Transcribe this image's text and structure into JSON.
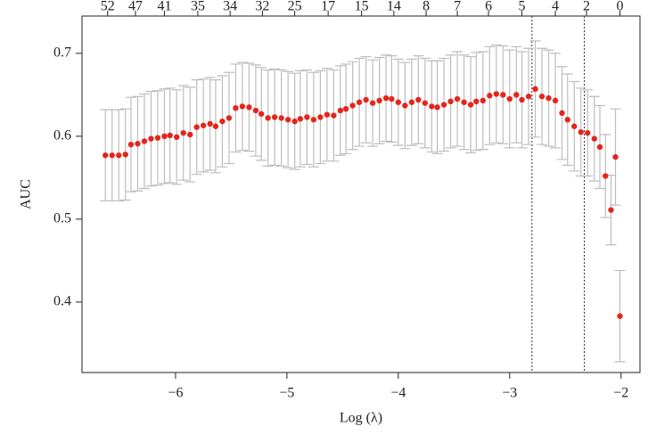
{
  "chart_data": {
    "type": "errorbar",
    "xlabel": "Log (λ)",
    "ylabel": "AUC",
    "xlim": [
      -6.84,
      -1.83
    ],
    "ylim": [
      0.315,
      0.745
    ],
    "xticks": [
      {
        "value": -6,
        "label": "−6"
      },
      {
        "value": -5,
        "label": "−5"
      },
      {
        "value": -4,
        "label": "−4"
      },
      {
        "value": -3,
        "label": "−3"
      },
      {
        "value": -2,
        "label": "−2"
      }
    ],
    "yticks": [
      0.4,
      0.5,
      0.6,
      0.7
    ],
    "top_ticks": [
      {
        "value": -6.61,
        "label": "52"
      },
      {
        "value": -6.36,
        "label": "47"
      },
      {
        "value": -6.1,
        "label": "41"
      },
      {
        "value": -5.8,
        "label": "35"
      },
      {
        "value": -5.51,
        "label": "34"
      },
      {
        "value": -5.22,
        "label": "32"
      },
      {
        "value": -4.93,
        "label": "25"
      },
      {
        "value": -4.63,
        "label": "17"
      },
      {
        "value": -4.33,
        "label": "15"
      },
      {
        "value": -4.04,
        "label": "14"
      },
      {
        "value": -3.75,
        "label": "8"
      },
      {
        "value": -3.47,
        "label": "7"
      },
      {
        "value": -3.19,
        "label": "6"
      },
      {
        "value": -2.89,
        "label": "5"
      },
      {
        "value": -2.59,
        "label": "4"
      },
      {
        "value": -2.31,
        "label": "2"
      },
      {
        "value": -2.01,
        "label": "0"
      }
    ],
    "vlines": [
      -2.8,
      -2.33
    ],
    "color": "#e3261c",
    "error_color": "#bdbdbd",
    "x": [
      -6.63,
      -6.57,
      -6.51,
      -6.45,
      -6.4,
      -6.34,
      -6.28,
      -6.22,
      -6.16,
      -6.1,
      -6.05,
      -5.99,
      -5.93,
      -5.87,
      -5.81,
      -5.75,
      -5.69,
      -5.64,
      -5.58,
      -5.52,
      -5.46,
      -5.4,
      -5.34,
      -5.28,
      -5.23,
      -5.17,
      -5.11,
      -5.05,
      -4.99,
      -4.93,
      -4.88,
      -4.82,
      -4.76,
      -4.7,
      -4.64,
      -4.58,
      -4.52,
      -4.47,
      -4.41,
      -4.35,
      -4.29,
      -4.23,
      -4.17,
      -4.11,
      -4.06,
      -4.0,
      -3.94,
      -3.88,
      -3.82,
      -3.76,
      -3.7,
      -3.65,
      -3.59,
      -3.53,
      -3.47,
      -3.41,
      -3.35,
      -3.3,
      -3.24,
      -3.18,
      -3.12,
      -3.06,
      -3.0,
      -2.94,
      -2.89,
      -2.83,
      -2.77,
      -2.71,
      -2.65,
      -2.59,
      -2.53,
      -2.48,
      -2.42,
      -2.36,
      -2.3,
      -2.24,
      -2.19,
      -2.14,
      -2.09,
      -2.05,
      -2.01
    ],
    "values": [
      0.577,
      0.577,
      0.577,
      0.578,
      0.59,
      0.591,
      0.594,
      0.597,
      0.598,
      0.6,
      0.601,
      0.599,
      0.604,
      0.602,
      0.611,
      0.613,
      0.615,
      0.612,
      0.618,
      0.622,
      0.634,
      0.636,
      0.635,
      0.631,
      0.627,
      0.622,
      0.623,
      0.622,
      0.62,
      0.618,
      0.621,
      0.623,
      0.62,
      0.623,
      0.626,
      0.625,
      0.631,
      0.633,
      0.637,
      0.641,
      0.644,
      0.64,
      0.643,
      0.646,
      0.645,
      0.641,
      0.637,
      0.641,
      0.644,
      0.64,
      0.636,
      0.635,
      0.638,
      0.642,
      0.645,
      0.641,
      0.638,
      0.642,
      0.643,
      0.649,
      0.651,
      0.65,
      0.645,
      0.65,
      0.644,
      0.648,
      0.657,
      0.648,
      0.646,
      0.643,
      0.628,
      0.62,
      0.612,
      0.605,
      0.604,
      0.597,
      0.587,
      0.552,
      0.511,
      0.575,
      0.383
    ],
    "errors": [
      0.055,
      0.055,
      0.055,
      0.055,
      0.057,
      0.057,
      0.057,
      0.057,
      0.057,
      0.057,
      0.057,
      0.057,
      0.057,
      0.057,
      0.057,
      0.056,
      0.056,
      0.056,
      0.055,
      0.055,
      0.053,
      0.053,
      0.053,
      0.055,
      0.056,
      0.058,
      0.058,
      0.058,
      0.058,
      0.058,
      0.058,
      0.057,
      0.057,
      0.056,
      0.056,
      0.055,
      0.054,
      0.054,
      0.053,
      0.053,
      0.052,
      0.052,
      0.052,
      0.052,
      0.052,
      0.052,
      0.052,
      0.052,
      0.053,
      0.054,
      0.055,
      0.056,
      0.056,
      0.056,
      0.057,
      0.057,
      0.058,
      0.059,
      0.059,
      0.059,
      0.059,
      0.059,
      0.059,
      0.058,
      0.058,
      0.058,
      0.058,
      0.058,
      0.058,
      0.057,
      0.056,
      0.055,
      0.054,
      0.053,
      0.052,
      0.051,
      0.05,
      0.05,
      0.042,
      0.058,
      0.055
    ]
  }
}
